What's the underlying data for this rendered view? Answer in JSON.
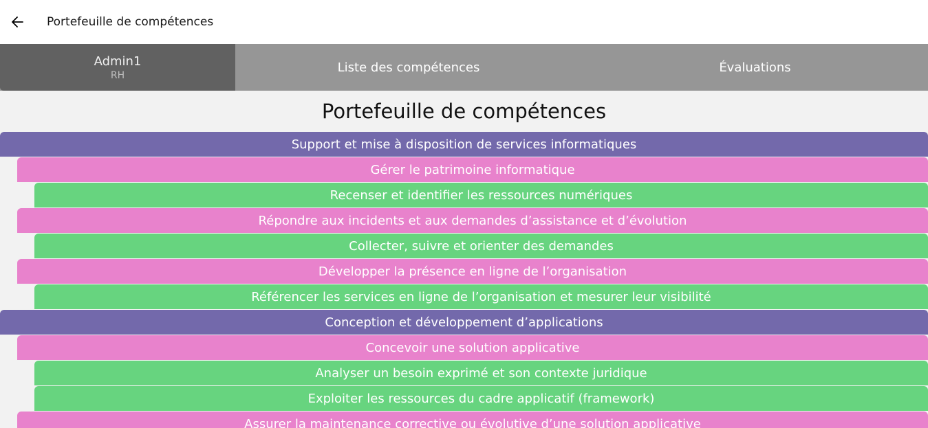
{
  "window": {
    "title": "Portefeuille de compétences"
  },
  "tabs": {
    "user_name": "Admin1",
    "user_role": "RH",
    "list_label": "Liste des compétences",
    "evals_label": "Évaluations"
  },
  "page": {
    "title": "Portefeuille de compétences"
  },
  "colors": {
    "block": "#7369ab",
    "activity": "#e882cc",
    "skill": "#67d47f"
  },
  "skills": [
    {
      "level": 0,
      "kind": "block",
      "label": "Support et mise à disposition de services informatiques"
    },
    {
      "level": 1,
      "kind": "activity",
      "label": "Gérer le patrimoine informatique"
    },
    {
      "level": 2,
      "kind": "skill",
      "label": "Recenser et identifier les ressources numériques"
    },
    {
      "level": 1,
      "kind": "activity",
      "label": "Répondre aux incidents et aux demandes d’assistance et d’évolution"
    },
    {
      "level": 2,
      "kind": "skill",
      "label": "Collecter, suivre et orienter des demandes"
    },
    {
      "level": 1,
      "kind": "activity",
      "label": "Développer la présence en ligne de l’organisation"
    },
    {
      "level": 2,
      "kind": "skill",
      "label": "Référencer les services en ligne de l’organisation et mesurer leur visibilité"
    },
    {
      "level": 0,
      "kind": "block",
      "label": "Conception et développement d’applications"
    },
    {
      "level": 1,
      "kind": "activity",
      "label": "Concevoir une solution applicative"
    },
    {
      "level": 2,
      "kind": "skill",
      "label": "Analyser un besoin exprimé et son contexte juridique"
    },
    {
      "level": 2,
      "kind": "skill",
      "label": "Exploiter les ressources du cadre applicatif (framework)"
    },
    {
      "level": 1,
      "kind": "activity",
      "label": "Assurer la maintenance corrective ou évolutive d’une solution applicative"
    }
  ]
}
